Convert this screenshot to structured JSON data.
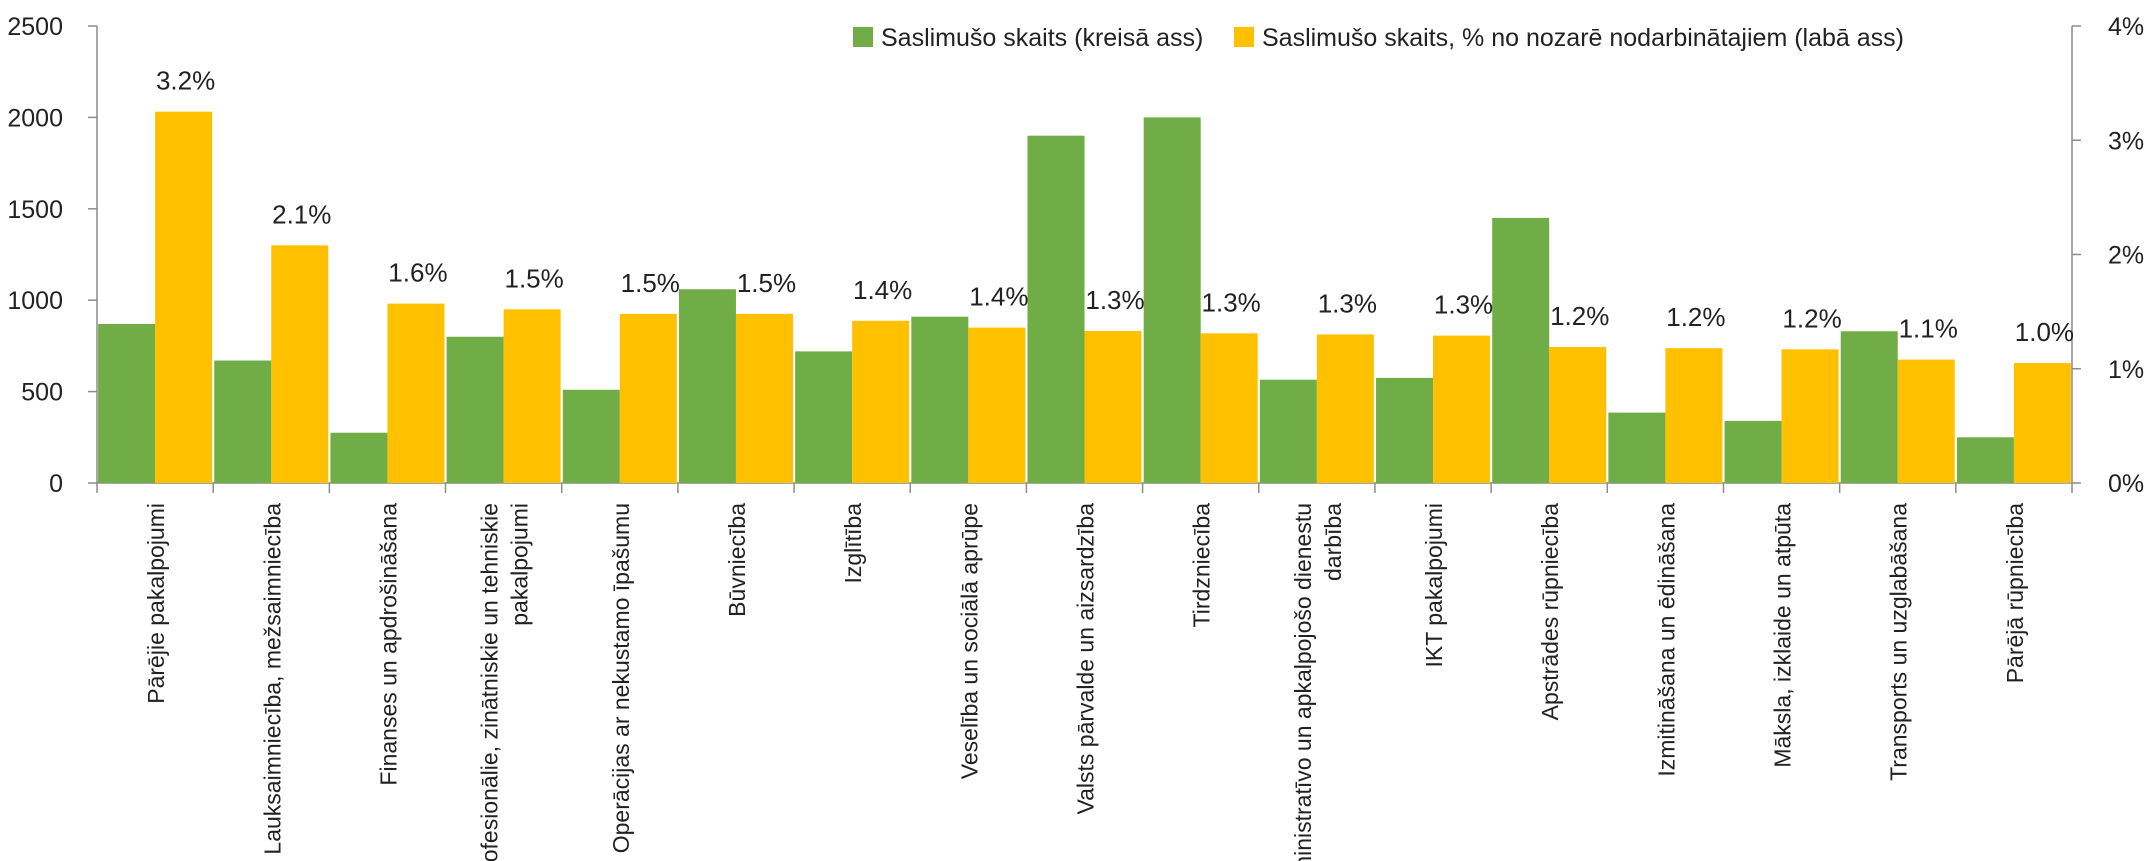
{
  "chart_data": {
    "type": "bar",
    "title": "",
    "categories": [
      [
        "Pārējie pakalpojumi"
      ],
      [
        "Lauksaimniecība, mežsaimniecība"
      ],
      [
        "Finanses un apdrošināšana"
      ],
      [
        "Profesionālie, zinātniskie un tehniskie",
        "pakalpojumi"
      ],
      [
        "Operācijas ar nekustamo īpašumu"
      ],
      [
        "Būvniecība"
      ],
      [
        "Izglītība"
      ],
      [
        "Veselība un sociālā aprūpe"
      ],
      [
        "Valsts pārvalde un aizsardzība"
      ],
      [
        "Tirdzniecība"
      ],
      [
        "Administratīvo un apkalpojošo dienestu",
        "darbība"
      ],
      [
        "IKT pakalpojumi"
      ],
      [
        "Apstrādes rūpniecība"
      ],
      [
        "Izmitināšana un ēdināšana"
      ],
      [
        "Māksla, izklaide un atpūta"
      ],
      [
        "Transports un uzglabāšana"
      ],
      [
        "Pārējā rūpniecība"
      ]
    ],
    "series": [
      {
        "name": "Saslimušo skaits (kreisā ass)",
        "axis": "left",
        "color": "#70ad47",
        "values": [
          870,
          670,
          275,
          800,
          510,
          1060,
          720,
          910,
          1900,
          2000,
          565,
          575,
          1450,
          385,
          340,
          830,
          250
        ]
      },
      {
        "name": "Saslimušo skaits, % no nozarē nodarbinātajiem (labā ass)",
        "axis": "right",
        "color": "#ffc000",
        "values": [
          3.25,
          2.08,
          1.57,
          1.52,
          1.48,
          1.48,
          1.42,
          1.36,
          1.33,
          1.31,
          1.3,
          1.29,
          1.19,
          1.18,
          1.17,
          1.08,
          1.05
        ],
        "data_labels": [
          "3.2%",
          "2.1%",
          "1.6%",
          "1.5%",
          "1.5%",
          "1.5%",
          "1.4%",
          "1.4%",
          "1.3%",
          "1.3%",
          "1.3%",
          "1.3%",
          "1.2%",
          "1.2%",
          "1.2%",
          "1.1%",
          "1.0%"
        ]
      }
    ],
    "y_left": {
      "min": 0,
      "max": 2500,
      "ticks": [
        0,
        500,
        1000,
        1500,
        2000,
        2500
      ],
      "tick_labels": [
        "0",
        "500",
        "1000",
        "1500",
        "2000",
        "2500"
      ]
    },
    "y_right": {
      "min": 0,
      "max": 4,
      "ticks": [
        0,
        1,
        2,
        3,
        4
      ],
      "tick_labels": [
        "0%",
        "1%",
        "2%",
        "3%",
        "4%"
      ]
    },
    "grid": false,
    "legend_position": "top-center"
  }
}
